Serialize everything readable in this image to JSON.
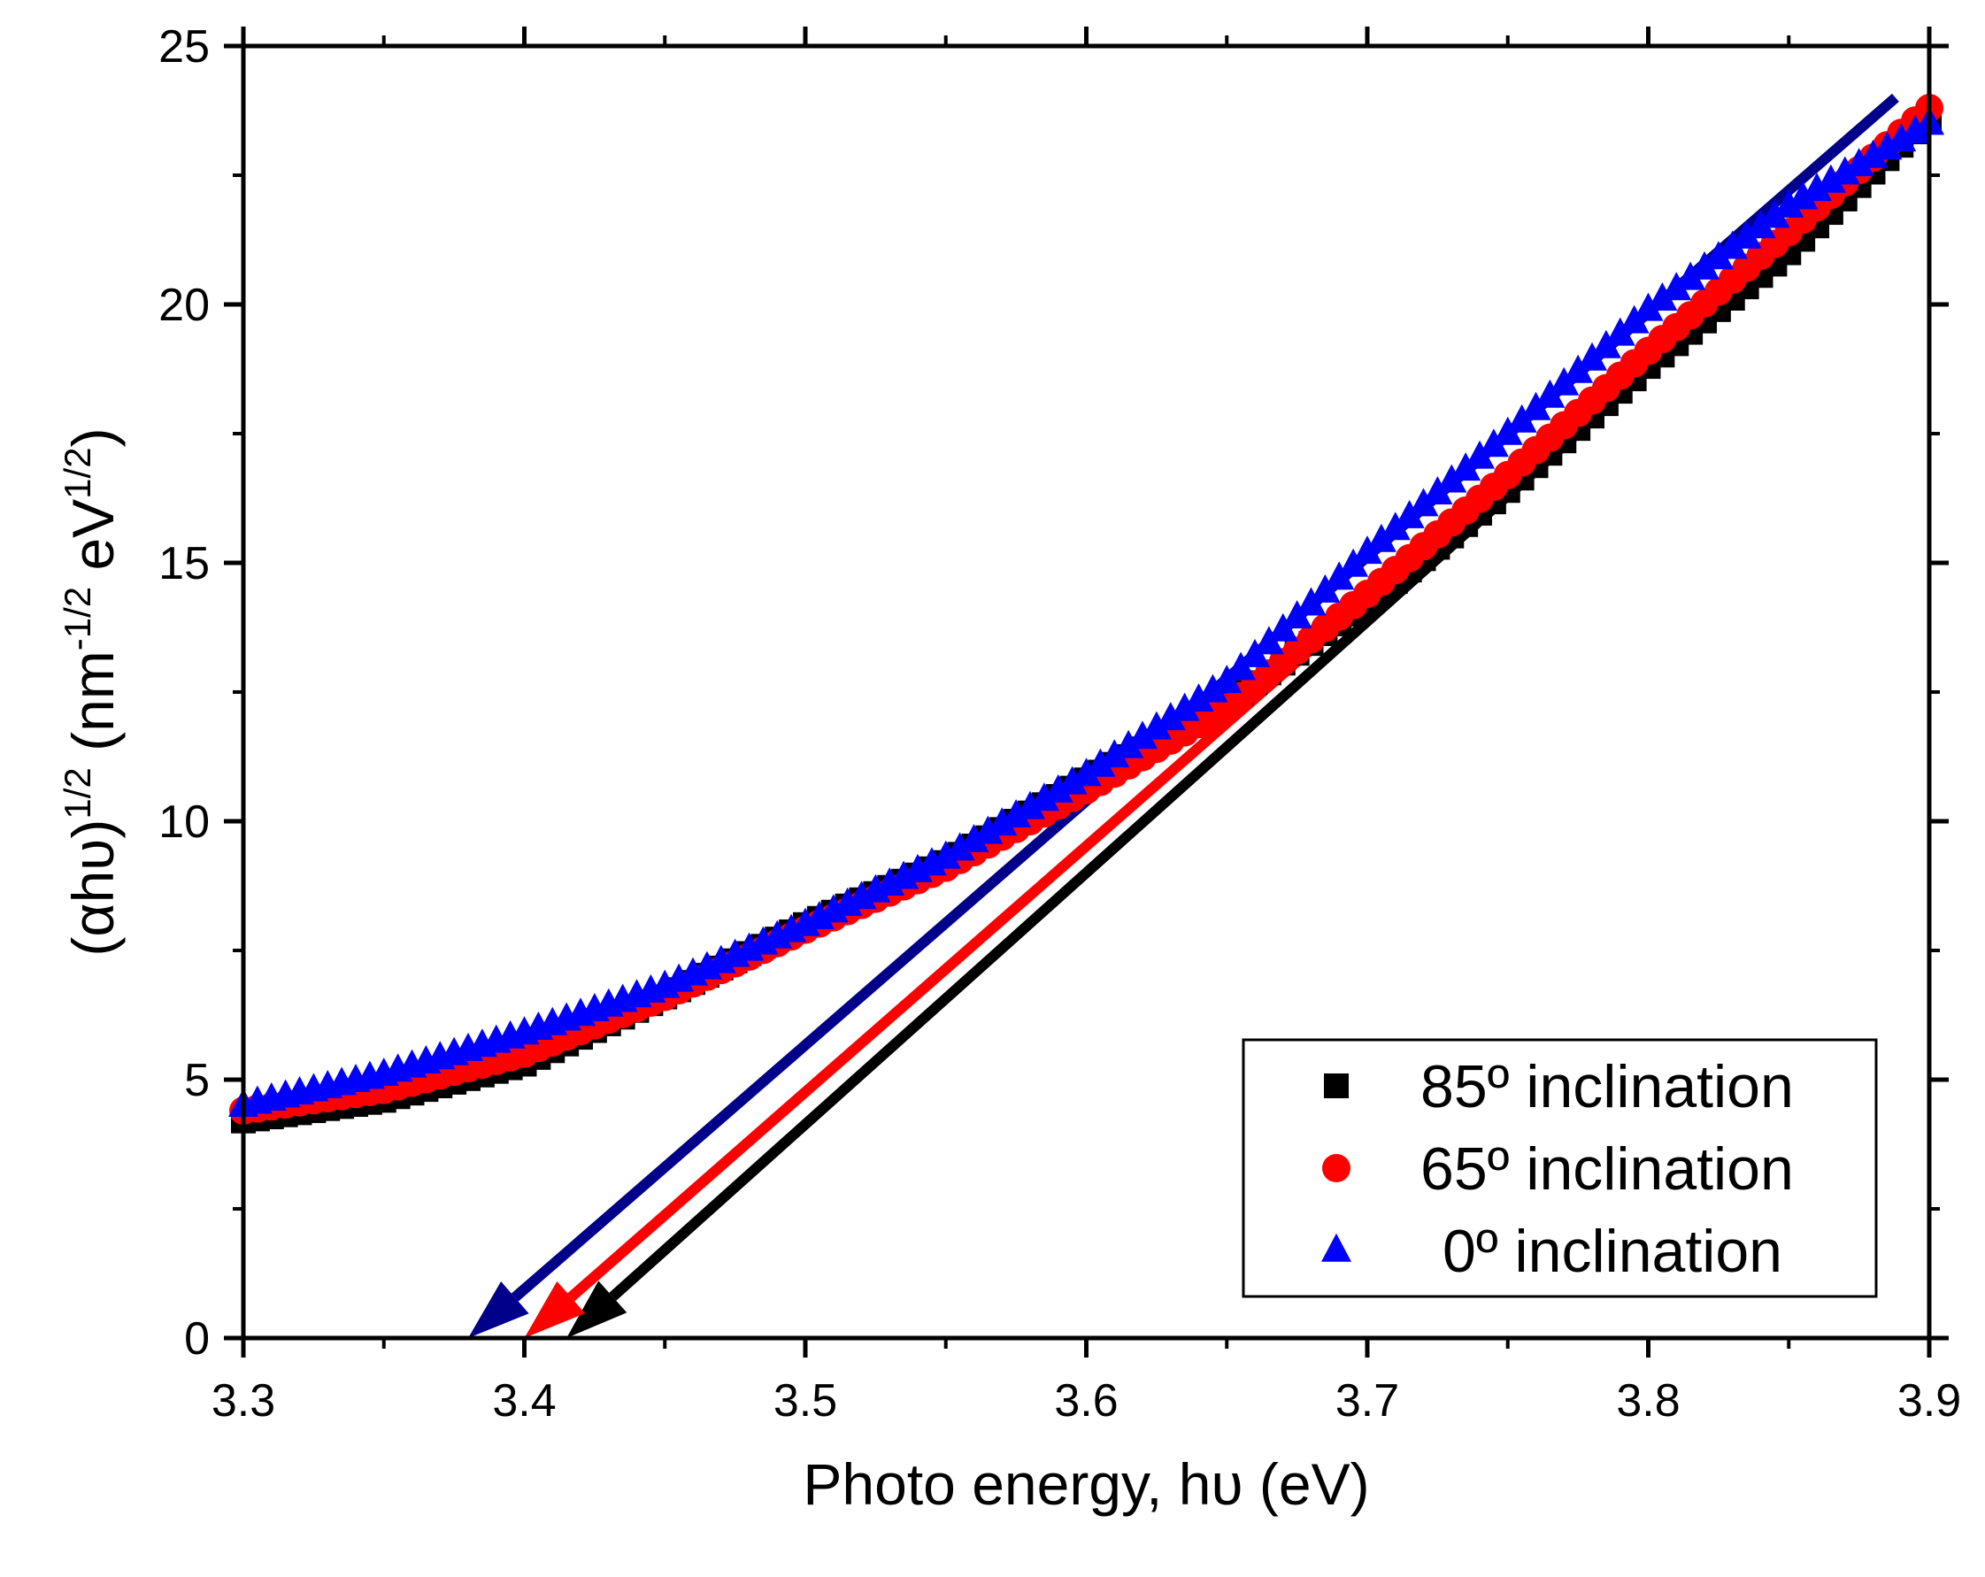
{
  "chart_data": {
    "type": "scatter",
    "title": "",
    "xlabel": "Photo energy, hυ (eV)",
    "ylabel": {
      "base": "(αhυ)",
      "exp1": "1/2",
      "unit_open": " (nm",
      "exp2": "-1/2",
      "unit_mid": " eV",
      "exp3": "1/2",
      "unit_close": ")"
    },
    "xlim": [
      3.3,
      3.9
    ],
    "ylim": [
      0,
      25
    ],
    "xticks": [
      3.3,
      3.4,
      3.5,
      3.6,
      3.7,
      3.8,
      3.9
    ],
    "xtick_labels": [
      "3.3",
      "3.4",
      "3.5",
      "3.6",
      "3.7",
      "3.8",
      "3.9"
    ],
    "yticks": [
      0,
      5,
      10,
      15,
      20,
      25
    ],
    "ytick_labels": [
      "0",
      "5",
      "10",
      "15",
      "20",
      "25"
    ],
    "grid": false,
    "legend_position": "bottom-right",
    "series": [
      {
        "name": "85º inclination",
        "marker": "square",
        "color": "#000000",
        "x_start": 3.3,
        "x_end": 3.9,
        "x_step": 0.005,
        "y_anchors": [
          [
            3.3,
            4.2
          ],
          [
            3.35,
            4.6
          ],
          [
            3.4,
            5.3
          ],
          [
            3.45,
            6.6
          ],
          [
            3.5,
            8.0
          ],
          [
            3.55,
            9.2
          ],
          [
            3.6,
            10.8
          ],
          [
            3.65,
            12.3
          ],
          [
            3.7,
            14.2
          ],
          [
            3.75,
            16.4
          ],
          [
            3.8,
            18.8
          ],
          [
            3.85,
            21.0
          ],
          [
            3.9,
            23.6
          ]
        ],
        "fit_line": {
          "x1": 3.415,
          "y1": 0,
          "x2": 3.9,
          "y2": 23.6,
          "color": "#000000"
        }
      },
      {
        "name": "65º inclination",
        "marker": "circle",
        "color": "#ff0000",
        "x_start": 3.3,
        "x_end": 3.9,
        "x_step": 0.005,
        "y_anchors": [
          [
            3.3,
            4.4
          ],
          [
            3.35,
            4.8
          ],
          [
            3.4,
            5.5
          ],
          [
            3.45,
            6.6
          ],
          [
            3.5,
            7.9
          ],
          [
            3.55,
            9.1
          ],
          [
            3.6,
            10.6
          ],
          [
            3.65,
            12.2
          ],
          [
            3.7,
            14.4
          ],
          [
            3.75,
            16.7
          ],
          [
            3.8,
            19.1
          ],
          [
            3.85,
            21.4
          ],
          [
            3.9,
            23.8
          ]
        ],
        "fit_line": {
          "x1": 3.4,
          "y1": 0,
          "x2": 3.9,
          "y2": 23.8,
          "color": "#ff0000"
        }
      },
      {
        "name": "0º inclination",
        "marker": "triangle",
        "color": "#0000ff",
        "x_start": 3.3,
        "x_end": 3.9,
        "x_step": 0.005,
        "y_anchors": [
          [
            3.3,
            4.5
          ],
          [
            3.35,
            5.1
          ],
          [
            3.4,
            5.9
          ],
          [
            3.45,
            6.8
          ],
          [
            3.5,
            8.0
          ],
          [
            3.55,
            9.3
          ],
          [
            3.6,
            10.9
          ],
          [
            3.65,
            12.7
          ],
          [
            3.7,
            15.2
          ],
          [
            3.75,
            17.5
          ],
          [
            3.8,
            19.9
          ],
          [
            3.85,
            21.9
          ],
          [
            3.9,
            23.5
          ]
        ],
        "fit_line": {
          "x1": 3.38,
          "y1": 0,
          "x2": 3.888,
          "y2": 24.0,
          "color": "#00008b"
        }
      }
    ]
  }
}
